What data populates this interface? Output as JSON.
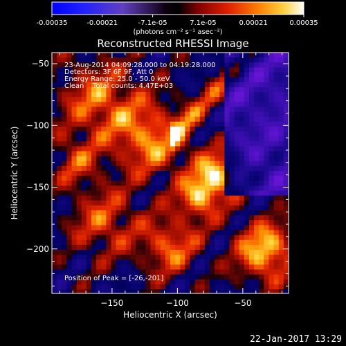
{
  "chart_data": {
    "type": "heatmap",
    "title": "Reconstructed RHESSI Image",
    "xlabel": "Heliocentric X (arcsec)",
    "ylabel": "Heliocentric Y (arcsec)",
    "xlim": [
      -196,
      -15
    ],
    "ylim": [
      -236,
      -41
    ],
    "xticks": [
      -150,
      -100,
      -50
    ],
    "yticks": [
      -50,
      -100,
      -150,
      -200
    ],
    "colorbar": {
      "min": -0.00035,
      "max": 0.00035,
      "ticks": [
        "-0.00035",
        "-0.00021",
        "-7.1e-05",
        "7.1e-05",
        "0.00021",
        "0.00035"
      ],
      "label": "(photons cm⁻² s⁻¹ asec⁻²)",
      "colormap": "blue-black-red-yellow-white"
    },
    "annotations": [
      "23-Aug-2014 04:09:28.000 to 04:19:28.000",
      "Detectors: 3F 6F 9F, Att 0",
      "Energy Range: 25.0 - 50.0 keV",
      "Clean    Total counts: 4.47E+03"
    ],
    "peak_label": "Position of Peak = [-26,-201]",
    "peak": {
      "x": -26,
      "y": -201
    }
  },
  "footer": {
    "timestamp": "22-Jan-2017 13:29"
  }
}
